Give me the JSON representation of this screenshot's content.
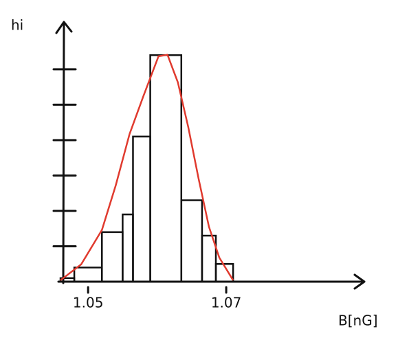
{
  "chart_data": {
    "type": "histogram",
    "y_label": "hi",
    "x_label": "B[nG]",
    "bins": [
      1.046,
      1.048,
      1.052,
      1.055,
      1.0565,
      1.059,
      1.0635,
      1.0665,
      1.0685,
      1.071
    ],
    "values": [
      0.1,
      0.4,
      1.4,
      1.9,
      4.1,
      6.4,
      2.3,
      1.3,
      0.5
    ],
    "color": "#111111",
    "fit": {
      "color": "#e03a2e",
      "x": [
        1.046,
        1.049,
        1.052,
        1.054,
        1.056,
        1.058,
        1.0602,
        1.0615,
        1.063,
        1.0645,
        1.066,
        1.0675,
        1.069,
        1.071
      ],
      "y": [
        0.04,
        0.49,
        1.46,
        2.72,
        4.17,
        5.24,
        6.37,
        6.41,
        5.63,
        4.37,
        2.91,
        1.55,
        0.68,
        0.04
      ]
    },
    "xlim": [
      1.046,
      1.09
    ],
    "xticks": [
      1.05,
      1.07
    ],
    "ylim": [
      0,
      6.6
    ],
    "yticks": [
      1,
      2,
      3,
      4,
      5,
      6
    ]
  }
}
